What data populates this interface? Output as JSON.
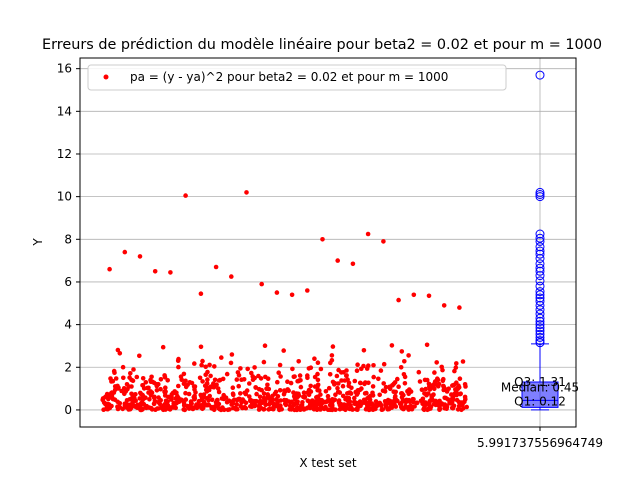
{
  "chart_data": {
    "type": "scatter",
    "title": "Erreurs de prédiction du modèle linéaire pour beta2 = 0.02 et pour m = 1000",
    "xlabel": "X test set",
    "ylabel": "Y",
    "ylim": [
      -0.8,
      16.5
    ],
    "y_ticks": [
      0,
      2,
      4,
      6,
      8,
      10,
      12,
      14,
      16
    ],
    "x_tick_label": "5.991737556964749",
    "grid": "horizontal",
    "legend_position": "top-left",
    "series": [
      {
        "name": "pa = (y - ya)^2 pour beta2 = 0.02 et pour m = 1000",
        "color": "#ff0000",
        "count": 1000,
        "notable_points": [
          {
            "y": 6.6
          },
          {
            "y": 7.4
          },
          {
            "y": 7.2
          },
          {
            "y": 6.5
          },
          {
            "y": 6.45
          },
          {
            "y": 10.05
          },
          {
            "y": 5.45
          },
          {
            "y": 6.7
          },
          {
            "y": 6.25
          },
          {
            "y": 10.2
          },
          {
            "y": 5.9
          },
          {
            "y": 5.5
          },
          {
            "y": 5.4
          },
          {
            "y": 5.6
          },
          {
            "y": 8.0
          },
          {
            "y": 7.0
          },
          {
            "y": 6.85
          },
          {
            "y": 8.25
          },
          {
            "y": 7.9
          },
          {
            "y": 5.15
          },
          {
            "y": 5.4
          },
          {
            "y": 5.35
          },
          {
            "y": 4.9
          },
          {
            "y": 4.8
          }
        ]
      }
    ],
    "boxplot": {
      "color": "#0000ff",
      "q1": 0.12,
      "median": 0.45,
      "q3": 1.31,
      "whisker_low": 0.0,
      "whisker_high": 3.1,
      "outliers": [
        3.15,
        3.25,
        3.4,
        3.55,
        3.7,
        3.85,
        4.0,
        4.15,
        4.3,
        4.5,
        4.7,
        4.9,
        5.1,
        5.25,
        5.4,
        5.55,
        5.8,
        6.05,
        6.3,
        6.5,
        6.65,
        6.85,
        7.1,
        7.3,
        7.45,
        7.65,
        7.9,
        8.05,
        8.25,
        10.0,
        10.1,
        10.2,
        15.7
      ],
      "labels": {
        "q3": "Q3: 1.31",
        "median": "Median: 0.45",
        "q1": "Q1: 0.12"
      }
    }
  }
}
